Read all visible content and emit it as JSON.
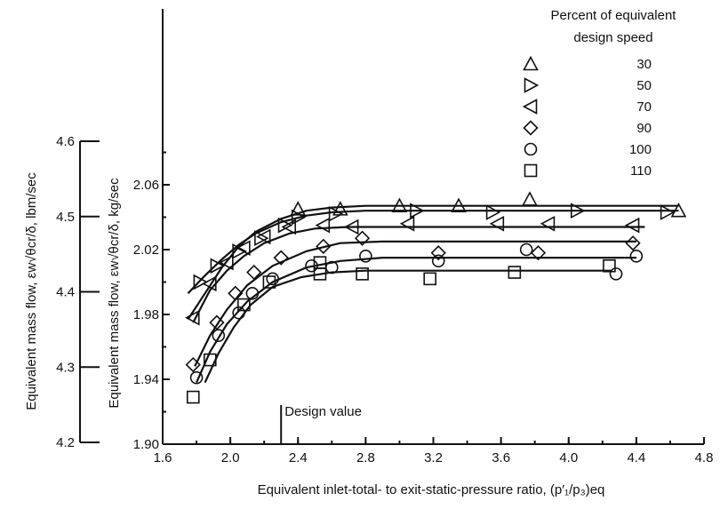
{
  "chart_data": {
    "type": "scatter",
    "title": "",
    "xlabel": "Equivalent inlet-total- to exit-static-pressure ratio, (p′₁/p₃)eq",
    "ylabel_kg": "Equivalent mass flow, εw√θcr/δ, kg/sec",
    "ylabel_lbm": "Equivalent mass flow, εw√θcr/δ, lbm/sec",
    "xlim": [
      1.6,
      4.8
    ],
    "ylim": [
      1.9,
      2.0911
    ],
    "lbm_lim": [
      4.2,
      4.6
    ],
    "x_ticks": [
      "1.6",
      "2.0",
      "2.4",
      "2.8",
      "3.2",
      "3.6",
      "4.0",
      "4.4",
      "4.8"
    ],
    "y_ticks": [
      "1.90",
      "1.94",
      "1.98",
      "2.02",
      "2.06"
    ],
    "lbm_ticks": [
      "4.2",
      "4.3",
      "4.4",
      "4.5",
      "4.6"
    ],
    "design_value": {
      "x": 2.3,
      "label": "Design value"
    },
    "legend_title": [
      "Percent of equivalent",
      "design speed"
    ],
    "series": [
      {
        "name": "30",
        "marker": "triangle-up",
        "points": [
          [
            2.4,
            2.045
          ],
          [
            2.65,
            2.045
          ],
          [
            3.0,
            2.047
          ],
          [
            3.35,
            2.047
          ],
          [
            3.77,
            2.051
          ],
          [
            4.65,
            2.044
          ]
        ],
        "curve": [
          [
            1.75,
            1.977
          ],
          [
            1.85,
            1.993
          ],
          [
            1.95,
            2.009
          ],
          [
            2.05,
            2.022
          ],
          [
            2.15,
            2.031
          ],
          [
            2.3,
            2.039
          ],
          [
            2.45,
            2.044
          ],
          [
            2.6,
            2.046
          ],
          [
            2.8,
            2.047
          ],
          [
            4.65,
            2.047
          ]
        ]
      },
      {
        "name": "50",
        "marker": "triangle-right",
        "points": [
          [
            1.82,
            2.0
          ],
          [
            1.92,
            2.01
          ],
          [
            2.05,
            2.019
          ],
          [
            2.18,
            2.027
          ],
          [
            2.32,
            2.035
          ],
          [
            2.4,
            2.04
          ],
          [
            2.62,
            2.042
          ],
          [
            3.1,
            2.044
          ],
          [
            3.55,
            2.043
          ],
          [
            4.05,
            2.044
          ],
          [
            4.58,
            2.043
          ]
        ],
        "curve": [
          [
            1.75,
            1.993
          ],
          [
            1.85,
            2.004
          ],
          [
            1.95,
            2.014
          ],
          [
            2.05,
            2.023
          ],
          [
            2.15,
            2.03
          ],
          [
            2.3,
            2.037
          ],
          [
            2.45,
            2.041
          ],
          [
            2.6,
            2.043
          ],
          [
            2.8,
            2.044
          ],
          [
            4.65,
            2.044
          ]
        ]
      },
      {
        "name": "70",
        "marker": "triangle-left",
        "points": [
          [
            1.78,
            1.978
          ],
          [
            1.88,
            1.999
          ],
          [
            1.98,
            2.012
          ],
          [
            2.08,
            2.021
          ],
          [
            2.2,
            2.028
          ],
          [
            2.35,
            2.034
          ],
          [
            2.55,
            2.035
          ],
          [
            2.72,
            2.034
          ],
          [
            3.05,
            2.036
          ],
          [
            3.58,
            2.036
          ],
          [
            3.88,
            2.036
          ],
          [
            4.38,
            2.035
          ]
        ],
        "curve": [
          [
            1.78,
            1.975
          ],
          [
            1.88,
            1.995
          ],
          [
            1.98,
            2.007
          ],
          [
            2.08,
            2.016
          ],
          [
            2.2,
            2.024
          ],
          [
            2.35,
            2.03
          ],
          [
            2.5,
            2.033
          ],
          [
            2.7,
            2.034
          ],
          [
            4.45,
            2.034
          ]
        ]
      },
      {
        "name": "90",
        "marker": "diamond",
        "points": [
          [
            1.78,
            1.949
          ],
          [
            1.92,
            1.975
          ],
          [
            2.03,
            1.993
          ],
          [
            2.14,
            2.006
          ],
          [
            2.3,
            2.015
          ],
          [
            2.55,
            2.022
          ],
          [
            2.78,
            2.027
          ],
          [
            3.23,
            2.018
          ],
          [
            3.82,
            2.018
          ],
          [
            4.38,
            2.024
          ]
        ],
        "curve": [
          [
            1.79,
            1.948
          ],
          [
            1.88,
            1.967
          ],
          [
            1.98,
            1.983
          ],
          [
            2.1,
            1.998
          ],
          [
            2.25,
            2.01
          ],
          [
            2.45,
            2.019
          ],
          [
            2.65,
            2.024
          ],
          [
            2.9,
            2.025
          ],
          [
            4.4,
            2.025
          ]
        ]
      },
      {
        "name": "100",
        "marker": "circle",
        "points": [
          [
            1.8,
            1.941
          ],
          [
            1.93,
            1.967
          ],
          [
            2.05,
            1.981
          ],
          [
            2.13,
            1.993
          ],
          [
            2.25,
            2.002
          ],
          [
            2.48,
            2.01
          ],
          [
            2.6,
            2.009
          ],
          [
            2.8,
            2.016
          ],
          [
            3.23,
            2.013
          ],
          [
            3.75,
            2.02
          ],
          [
            4.28,
            2.005
          ],
          [
            4.4,
            2.016
          ]
        ],
        "curve": [
          [
            1.8,
            1.938
          ],
          [
            1.88,
            1.957
          ],
          [
            1.98,
            1.974
          ],
          [
            2.1,
            1.988
          ],
          [
            2.25,
            2.0
          ],
          [
            2.45,
            2.009
          ],
          [
            2.65,
            2.013
          ],
          [
            2.9,
            2.015
          ],
          [
            4.4,
            2.015
          ]
        ]
      },
      {
        "name": "110",
        "marker": "square",
        "points": [
          [
            1.78,
            1.929
          ],
          [
            1.88,
            1.952
          ],
          [
            2.08,
            1.986
          ],
          [
            2.23,
            2.0
          ],
          [
            2.53,
            2.012
          ],
          [
            2.53,
            2.005
          ],
          [
            2.78,
            2.005
          ],
          [
            3.18,
            2.002
          ],
          [
            3.68,
            2.006
          ],
          [
            4.24,
            2.01
          ]
        ],
        "curve": [
          [
            1.85,
            1.938
          ],
          [
            1.93,
            1.956
          ],
          [
            2.02,
            1.972
          ],
          [
            2.12,
            1.986
          ],
          [
            2.25,
            1.997
          ],
          [
            2.42,
            2.003
          ],
          [
            2.6,
            2.006
          ],
          [
            2.8,
            2.007
          ],
          [
            4.25,
            2.007
          ]
        ]
      }
    ]
  }
}
